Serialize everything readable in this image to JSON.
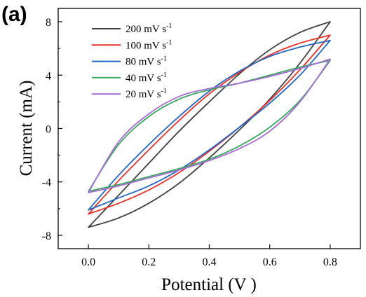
{
  "panel_label": "(a)",
  "chart_data": {
    "type": "line",
    "xlabel": "Potential (V )",
    "ylabel": "Current (mA)",
    "xlim": [
      -0.1,
      0.9
    ],
    "ylim": [
      -9,
      9
    ],
    "xticks": [
      0.0,
      0.2,
      0.4,
      0.6,
      0.8
    ],
    "xtick_labels": [
      "0.0",
      "0.2",
      "0.4",
      "0.6",
      "0.8"
    ],
    "yticks": [
      8,
      4,
      0,
      -4,
      -8
    ],
    "ytick_labels": [
      "8",
      "4",
      "0",
      "-4",
      "-8"
    ],
    "grid": false,
    "legend": "top-left",
    "series": [
      {
        "name": "200 mV s",
        "name_sup": "-1",
        "color": "#404040",
        "upper": {
          "x": [
            0.0,
            0.1,
            0.2,
            0.3,
            0.4,
            0.5,
            0.6,
            0.7,
            0.8
          ],
          "y": [
            -7.4,
            -5.0,
            -2.6,
            -0.2,
            2.0,
            4.1,
            5.9,
            7.2,
            8.0
          ]
        },
        "lower": {
          "x": [
            0.0,
            0.1,
            0.2,
            0.3,
            0.4,
            0.5,
            0.6,
            0.7,
            0.8
          ],
          "y": [
            -7.4,
            -6.7,
            -5.6,
            -4.1,
            -2.2,
            -0.1,
            2.2,
            4.9,
            8.0
          ]
        }
      },
      {
        "name": "100 mV s",
        "name_sup": "-1",
        "color": "#e8312a",
        "upper": {
          "x": [
            0.0,
            0.1,
            0.2,
            0.3,
            0.4,
            0.5,
            0.6,
            0.7,
            0.8
          ],
          "y": [
            -6.4,
            -3.9,
            -1.6,
            0.6,
            2.6,
            4.2,
            5.5,
            6.4,
            7.0
          ]
        },
        "lower": {
          "x": [
            0.0,
            0.1,
            0.2,
            0.3,
            0.4,
            0.5,
            0.6,
            0.7,
            0.8
          ],
          "y": [
            -6.4,
            -5.6,
            -4.6,
            -3.3,
            -1.7,
            0.1,
            2.1,
            4.4,
            7.0
          ]
        }
      },
      {
        "name": "80 mV s",
        "name_sup": "-1",
        "color": "#2166c4",
        "upper": {
          "x": [
            0.0,
            0.1,
            0.2,
            0.3,
            0.4,
            0.5,
            0.6,
            0.7,
            0.8
          ],
          "y": [
            -6.1,
            -3.5,
            -1.2,
            0.9,
            2.8,
            4.3,
            5.4,
            6.1,
            6.6
          ]
        },
        "lower": {
          "x": [
            0.0,
            0.1,
            0.2,
            0.3,
            0.4,
            0.5,
            0.6,
            0.7,
            0.8
          ],
          "y": [
            -6.1,
            -5.2,
            -4.3,
            -3.1,
            -1.6,
            0.1,
            1.9,
            4.0,
            6.6
          ]
        }
      },
      {
        "name": "40 mV s",
        "name_sup": "-1",
        "color": "#3aa85c",
        "upper": {
          "x": [
            0.0,
            0.1,
            0.2,
            0.3,
            0.4,
            0.5,
            0.6,
            0.7,
            0.8
          ],
          "y": [
            -4.7,
            -1.2,
            0.9,
            2.2,
            2.9,
            3.4,
            4.0,
            4.6,
            5.1
          ]
        },
        "lower": {
          "x": [
            0.0,
            0.1,
            0.2,
            0.3,
            0.4,
            0.5,
            0.6,
            0.7,
            0.8
          ],
          "y": [
            -4.7,
            -4.2,
            -3.6,
            -3.0,
            -2.3,
            -1.3,
            0.1,
            2.1,
            5.1
          ]
        }
      },
      {
        "name": "20 mV s",
        "name_sup": "-1",
        "color": "#a66bd6",
        "upper": {
          "x": [
            0.0,
            0.1,
            0.2,
            0.3,
            0.4,
            0.5,
            0.6,
            0.7,
            0.8
          ],
          "y": [
            -4.8,
            -1.0,
            1.1,
            2.4,
            3.0,
            3.4,
            3.9,
            4.5,
            5.2
          ]
        },
        "lower": {
          "x": [
            0.0,
            0.1,
            0.2,
            0.3,
            0.4,
            0.5,
            0.6,
            0.7,
            0.8
          ],
          "y": [
            -4.8,
            -4.3,
            -3.7,
            -3.1,
            -2.4,
            -1.5,
            -0.2,
            2.0,
            5.2
          ]
        }
      }
    ]
  }
}
